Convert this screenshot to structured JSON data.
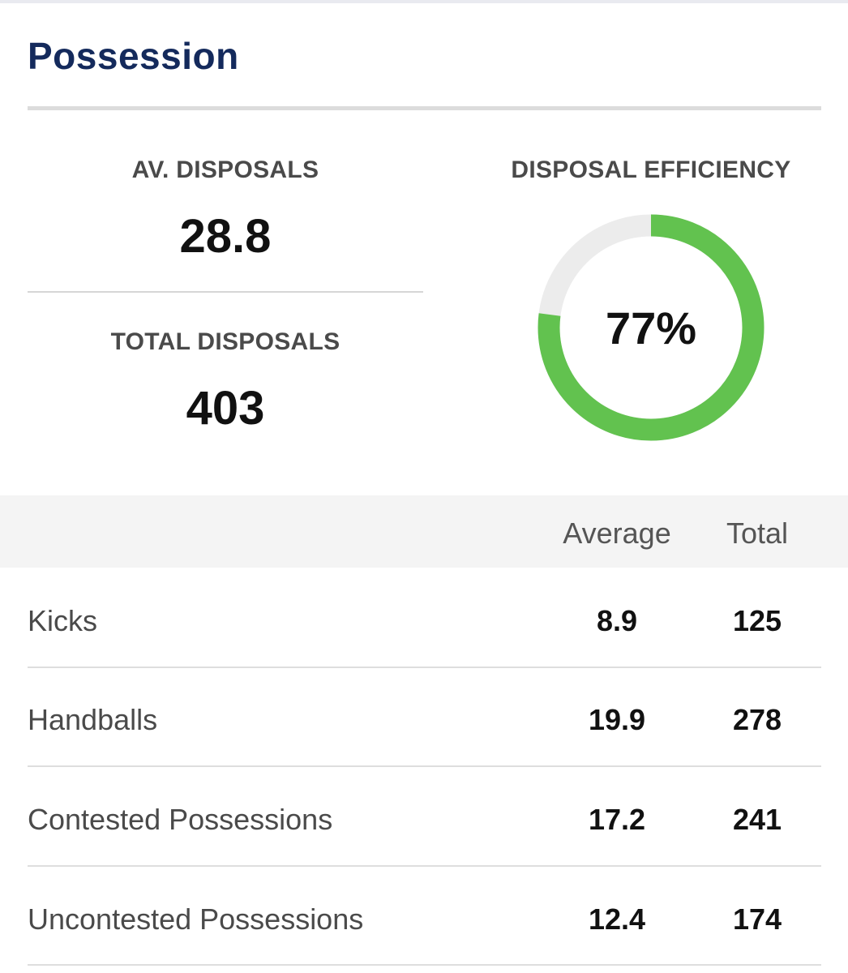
{
  "section": {
    "title": "Possession"
  },
  "stats": {
    "av_disposals_label": "AV. DISPOSALS",
    "av_disposals_value": "28.8",
    "total_disposals_label": "TOTAL DISPOSALS",
    "total_disposals_value": "403"
  },
  "efficiency": {
    "label": "DISPOSAL EFFICIENCY",
    "value_text": "77%",
    "fraction": 0.77,
    "fill_color": "#62c24f",
    "track_color": "#ececec"
  },
  "table": {
    "columns": [
      "Average",
      "Total"
    ],
    "rows": [
      {
        "label": "Kicks",
        "average": "8.9",
        "total": "125"
      },
      {
        "label": "Handballs",
        "average": "19.9",
        "total": "278"
      },
      {
        "label": "Contested Possessions",
        "average": "17.2",
        "total": "241"
      },
      {
        "label": "Uncontested Possessions",
        "average": "12.4",
        "total": "174"
      }
    ]
  },
  "colors": {
    "title": "#142a5c",
    "accent_green": "#62c24f"
  }
}
